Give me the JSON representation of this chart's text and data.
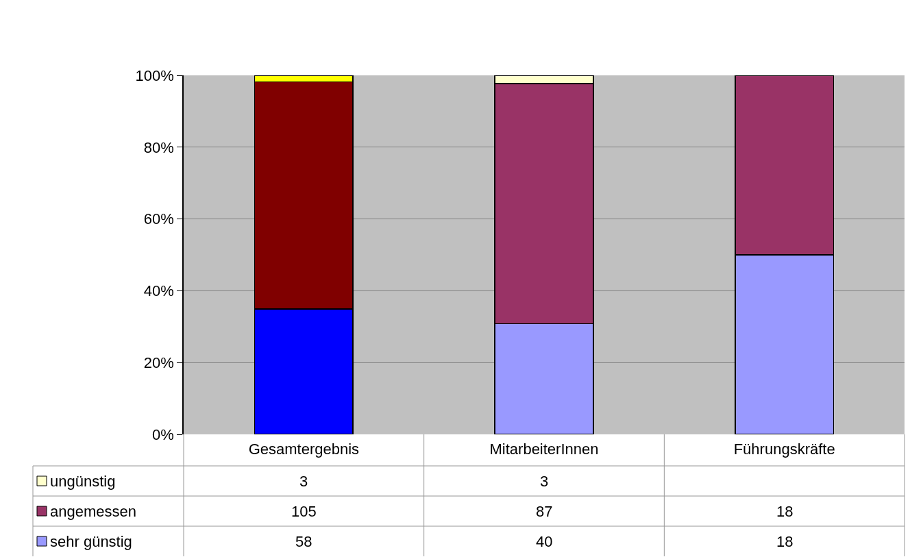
{
  "chart_data": {
    "type": "bar",
    "stacked": true,
    "categories": [
      "Gesamtergebnis",
      "MitarbeiterInnen",
      "Führungskräfte"
    ],
    "series": [
      {
        "name": "sehr günstig",
        "color": "#9999ff",
        "colors": [
          "#0000ff",
          "#9999ff",
          "#9999ff"
        ],
        "values": [
          34.9,
          30.8,
          50
        ]
      },
      {
        "name": "angemessen",
        "color": "#993366",
        "colors": [
          "#800000",
          "#993366",
          "#993366"
        ],
        "values": [
          63.3,
          66.9,
          50
        ]
      },
      {
        "name": "ungünstig",
        "color": "#ffffcc",
        "colors": [
          "#ffff00",
          "#ffffcc",
          "#ffffcc"
        ],
        "values": [
          1.8,
          2.3,
          null
        ]
      }
    ],
    "ylim": [
      0,
      100
    ],
    "yticks": [
      {
        "value": 0,
        "label": "0%"
      },
      {
        "value": 20,
        "label": "20%"
      },
      {
        "value": 40,
        "label": "40%"
      },
      {
        "value": 60,
        "label": "60%"
      },
      {
        "value": 80,
        "label": "80%"
      },
      {
        "value": 100,
        "label": "100%"
      }
    ],
    "annotations": [
      "3",
      "3",
      "105",
      "87",
      "18",
      "58",
      "40",
      "18"
    ],
    "grid": "y",
    "legend": "bottom"
  }
}
